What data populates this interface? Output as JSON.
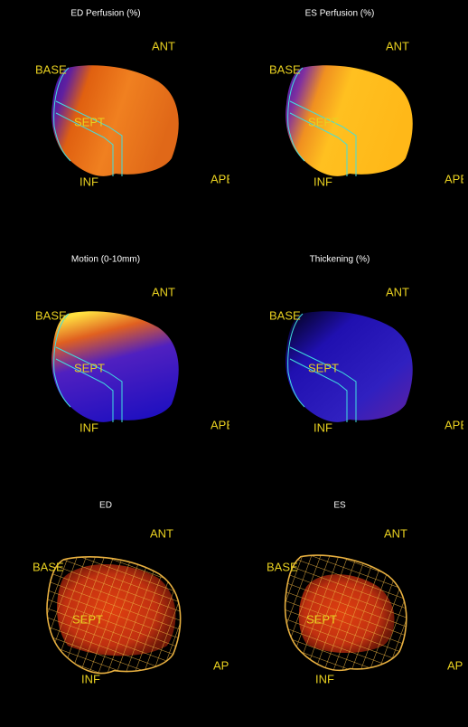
{
  "panels": [
    {
      "title": "ED Perfusion (%)",
      "labels": {
        "ant": "ANT",
        "base": "BASE",
        "sept": "SEPT",
        "inf": "INF",
        "apex": "APEX"
      }
    },
    {
      "title": "ES Perfusion (%)",
      "labels": {
        "ant": "ANT",
        "base": "BASE",
        "sept": "SEPT",
        "inf": "INF",
        "apex": "APEX"
      }
    },
    {
      "title": "Motion (0-10mm)",
      "labels": {
        "ant": "ANT",
        "base": "BASE",
        "sept": "SEPT",
        "inf": "INF",
        "apex": "APEX"
      }
    },
    {
      "title": "Thickening (%)",
      "labels": {
        "ant": "ANT",
        "base": "BASE",
        "sept": "SEPT",
        "inf": "INF",
        "apex": "APEX"
      }
    },
    {
      "title": "ED",
      "labels": {
        "ant": "ANT",
        "base": "BASE",
        "sept": "SEPT",
        "inf": "INF",
        "apex": "APEX"
      }
    },
    {
      "title": "ES",
      "labels": {
        "ant": "ANT",
        "base": "BASE",
        "sept": "SEPT",
        "inf": "INF",
        "apex": "APEX"
      }
    }
  ]
}
